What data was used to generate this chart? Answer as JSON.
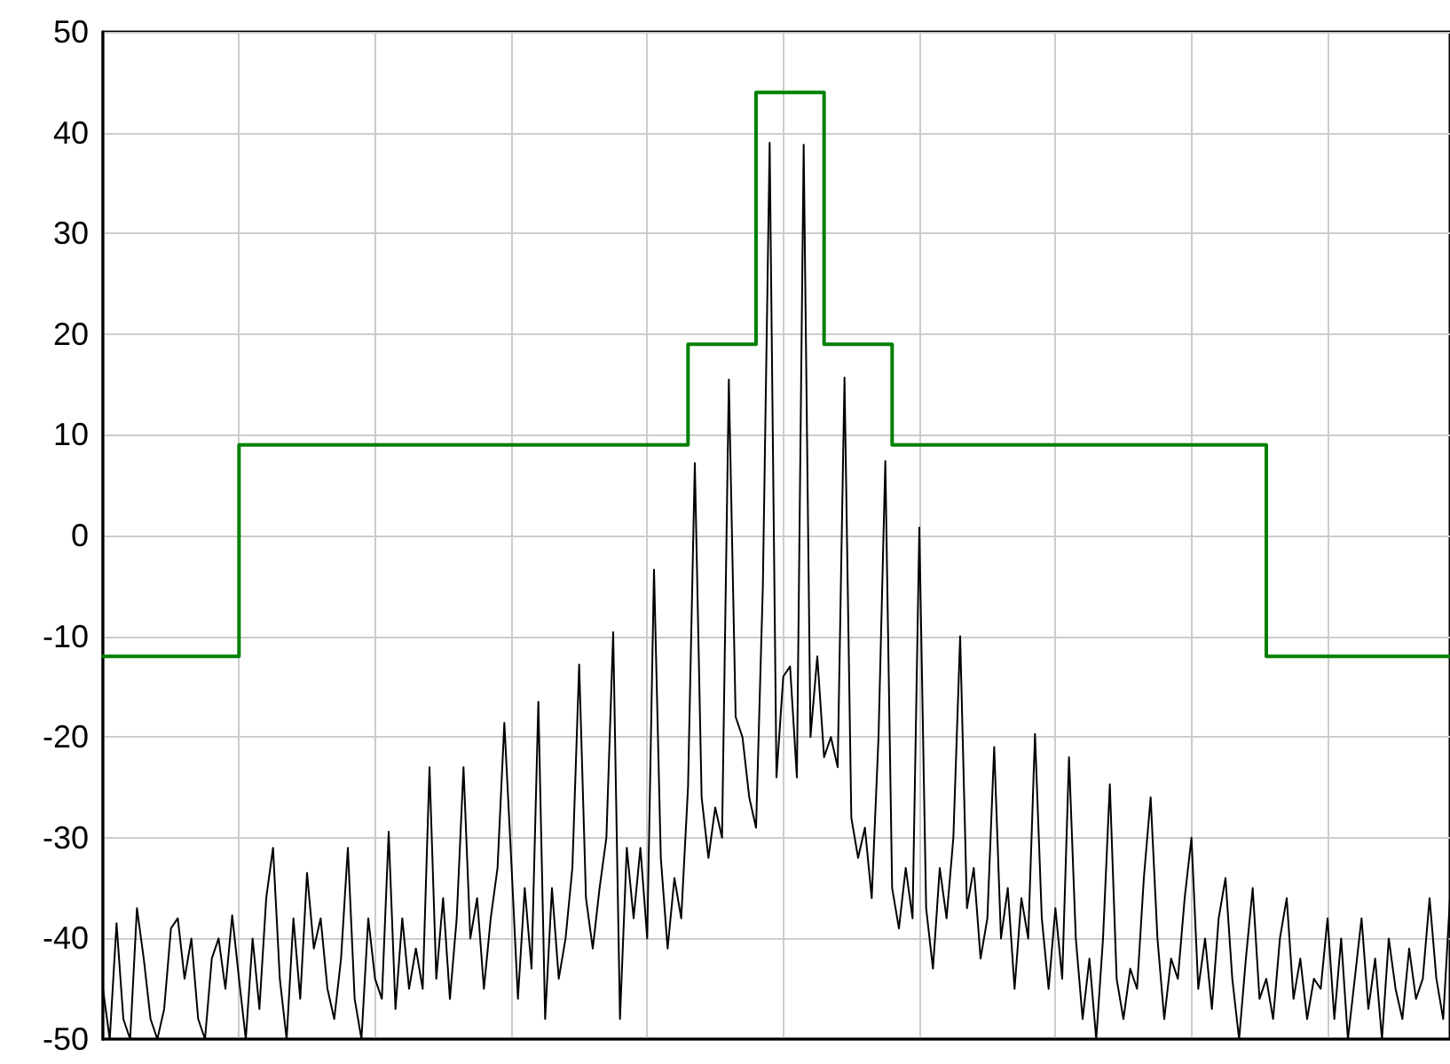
{
  "chart_data": {
    "type": "line",
    "categories": [
      null,
      null,
      null,
      null,
      null,
      null,
      null,
      null,
      null,
      null,
      null,
      null,
      null,
      null,
      null,
      null,
      null,
      null,
      null,
      null,
      null,
      null,
      null,
      null,
      null,
      null,
      null,
      null,
      null,
      null,
      null,
      null,
      null,
      null,
      null,
      null,
      null,
      null,
      null,
      null,
      null,
      null,
      null,
      null,
      null,
      null,
      null,
      null,
      null,
      null,
      null,
      null,
      null,
      null,
      null,
      null,
      null,
      null,
      null,
      null,
      null,
      null,
      null,
      null,
      null,
      null,
      null,
      null,
      null,
      null,
      null,
      null,
      null,
      null,
      null,
      null,
      null,
      null,
      null,
      null,
      null,
      null,
      null,
      null,
      null,
      null,
      null,
      null,
      null,
      null,
      null,
      null,
      null,
      null,
      null,
      null,
      null,
      null,
      null,
      null,
      null,
      null,
      null,
      null,
      null,
      null,
      null,
      null,
      null,
      null,
      null,
      null,
      null,
      null,
      null,
      null,
      null,
      null,
      null,
      null,
      null,
      null,
      null,
      null,
      null,
      null,
      null,
      null,
      null,
      null,
      null,
      null,
      null,
      null,
      null,
      null,
      null,
      null,
      null,
      null,
      null,
      null,
      null,
      null,
      null,
      null,
      null,
      null,
      null,
      null,
      null,
      null,
      null,
      null,
      null,
      null,
      null,
      null,
      null,
      null,
      null,
      null,
      null,
      null,
      null,
      null,
      null,
      null,
      null,
      null,
      null,
      null,
      null,
      null,
      null,
      null,
      null,
      null,
      null,
      null,
      null,
      null,
      null,
      null,
      null,
      null,
      null,
      null,
      null,
      null,
      null,
      null,
      null,
      null,
      null,
      null,
      null,
      null,
      null
    ],
    "series": [
      {
        "color": "#000000",
        "values": [
          -45,
          -50,
          -38.5,
          -48,
          -50,
          -37,
          -42,
          -48,
          -50,
          -47,
          -39,
          -38,
          -44,
          -40,
          -48,
          -50,
          -42,
          -40,
          -45,
          -37.7,
          -44,
          -50,
          -40,
          -47,
          -36,
          -31,
          -44,
          -50,
          -38,
          -46,
          -33.5,
          -41,
          -38,
          -45,
          -48,
          -42,
          -31,
          -46,
          -50,
          -38,
          -44,
          -46,
          -29.4,
          -47,
          -38,
          -45,
          -41,
          -45,
          -23,
          -44,
          -36,
          -46,
          -38,
          -23,
          -40,
          -36,
          -45,
          -38,
          -33,
          -18.6,
          -32,
          -46,
          -35,
          -43,
          -16.5,
          -48,
          -35,
          -44,
          -40,
          -33,
          -12.8,
          -36,
          -41,
          -35,
          -30,
          -9.6,
          -48,
          -31,
          -38,
          -31,
          -40,
          -3.4,
          -32,
          -41,
          -34,
          -38,
          -25,
          7.2,
          -26,
          -32,
          -27,
          -30,
          15.5,
          -18,
          -20,
          -26,
          -29,
          -5,
          39,
          -24,
          -14,
          -13,
          -24,
          38.8,
          -20,
          -12,
          -22,
          -20,
          -23,
          15.7,
          -28,
          -32,
          -29,
          -36,
          -20,
          7.4,
          -35,
          -39,
          -33,
          -38,
          0.8,
          -37,
          -43,
          -33,
          -38,
          -30,
          -10,
          -37,
          -33,
          -42,
          -38,
          -21,
          -40,
          -35,
          -45,
          -36,
          -40,
          -19.7,
          -38,
          -45,
          -37,
          -44,
          -22,
          -40,
          -48,
          -42,
          -50,
          -40,
          -24.7,
          -44,
          -48,
          -43,
          -45,
          -34,
          -26,
          -40,
          -48,
          -42,
          -44,
          -36,
          -30,
          -45,
          -40,
          -47,
          -38,
          -34,
          -44,
          -50,
          -42,
          -35,
          -46,
          -44,
          -48,
          -40,
          -36,
          -46,
          -42,
          -48,
          -44,
          -45,
          -38,
          -48,
          -40,
          -50,
          -44,
          -38,
          -47,
          -42,
          -50,
          -40,
          -45,
          -48,
          -41,
          -46,
          -44,
          -36,
          -44,
          -48,
          -36
        ]
      },
      {
        "type": "step",
        "color": "#008000",
        "values": [
          -12,
          -12,
          -12,
          -12,
          -12,
          -12,
          -12,
          -12,
          -12,
          -12,
          -12,
          -12,
          -12,
          -12,
          -12,
          -12,
          -12,
          -12,
          -12,
          -12,
          -12,
          9,
          9,
          9,
          9,
          9,
          9,
          9,
          9,
          9,
          9,
          9,
          9,
          9,
          9,
          9,
          9,
          9,
          9,
          9,
          9,
          9,
          9,
          9,
          9,
          9,
          9,
          9,
          9,
          9,
          9,
          9,
          9,
          9,
          9,
          9,
          9,
          9,
          9,
          9,
          9,
          9,
          9,
          9,
          9,
          9,
          9,
          9,
          9,
          9,
          9,
          9,
          9,
          9,
          9,
          9,
          9,
          9,
          9,
          9,
          9,
          9,
          9,
          9,
          9,
          9,
          9,
          19,
          19,
          19,
          19,
          19,
          19,
          19,
          19,
          19,
          19,
          44,
          44,
          44,
          44,
          44,
          44,
          44,
          44,
          44,
          44,
          19,
          19,
          19,
          19,
          19,
          19,
          19,
          19,
          19,
          19,
          9,
          9,
          9,
          9,
          9,
          9,
          9,
          9,
          9,
          9,
          9,
          9,
          9,
          9,
          9,
          9,
          9,
          9,
          9,
          9,
          9,
          9,
          9,
          9,
          9,
          9,
          9,
          9,
          9,
          9,
          9,
          9,
          9,
          9,
          9,
          9,
          9,
          9,
          9,
          9,
          9,
          9,
          9,
          9,
          9,
          9,
          9,
          9,
          9,
          9,
          9,
          9,
          9,
          9,
          9,
          -12,
          -12,
          -12,
          -12,
          -12,
          -12,
          -12,
          -12,
          -12,
          -12,
          -12,
          -12,
          -12,
          -12,
          -12,
          -12,
          -12,
          -12,
          -12,
          -12,
          -12,
          -12,
          -12,
          -12,
          -12,
          -12,
          -12
        ]
      }
    ],
    "ylim": [
      -50,
      50
    ],
    "yticks": [
      -50,
      -40,
      -30,
      -20,
      -10,
      0,
      10,
      20,
      30,
      40,
      50
    ],
    "grid": true,
    "tick_labels": "y",
    "marker": "none",
    "line_style": "solid"
  }
}
